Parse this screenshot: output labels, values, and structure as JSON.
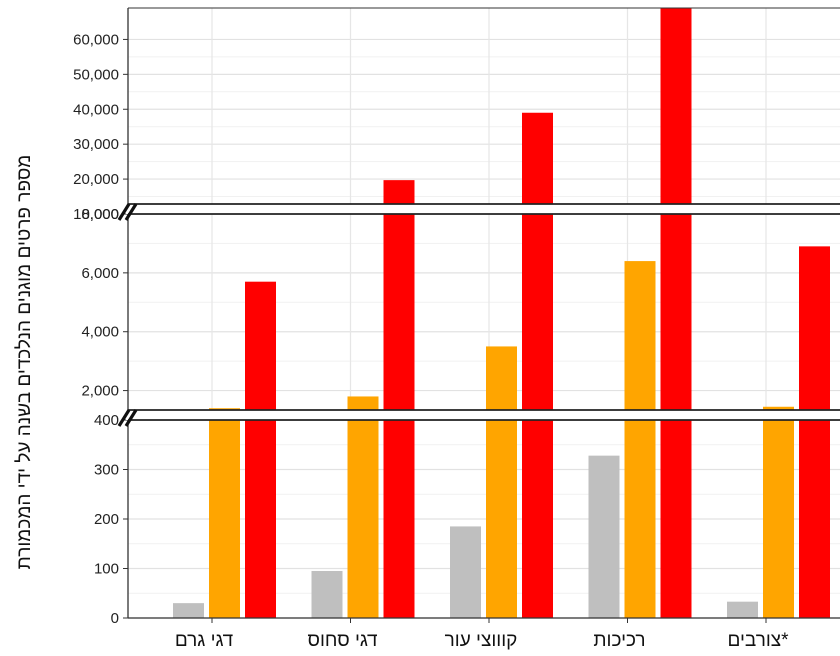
{
  "chart_data": {
    "type": "bar",
    "title": "",
    "xlabel": "",
    "ylabel": "מספר פרטים מוגנים הנלכדים בשנה על ידי המכמורת",
    "ylim": [
      0,
      69000
    ],
    "axis_breaks": [
      [
        400,
        1000
      ],
      [
        8000,
        10000
      ]
    ],
    "y_segments": [
      {
        "range": [
          0,
          400
        ],
        "ticks": [
          0,
          100,
          200,
          300,
          400
        ],
        "tick_labels": [
          "0",
          "100",
          "200",
          "300",
          "400"
        ]
      },
      {
        "range": [
          1000,
          8000
        ],
        "ticks": [
          2000,
          4000,
          6000,
          8000
        ],
        "tick_labels": [
          "2,000",
          "4,000",
          "6,000",
          "8,000"
        ]
      },
      {
        "range": [
          10000,
          69000
        ],
        "ticks": [
          10000,
          20000,
          30000,
          40000,
          50000,
          60000
        ],
        "tick_labels": [
          "10,000",
          "20,000",
          "30,000",
          "40,000",
          "50,000",
          "60,000"
        ]
      }
    ],
    "grid": true,
    "legend": "none",
    "categories": [
      "דגי גרם",
      "דגי סחוס",
      "קוווצי עור",
      "רכיכות",
      "צורבים*"
    ],
    "series": [
      {
        "color": "#bfbfbf",
        "values": [
          30,
          95,
          185,
          328,
          33
        ]
      },
      {
        "color": "#ffa500",
        "values": [
          1400,
          1800,
          3500,
          6400,
          1450
        ]
      },
      {
        "color": "#ff0000",
        "values": [
          5700,
          19700,
          39000,
          69000,
          6900
        ]
      }
    ]
  }
}
